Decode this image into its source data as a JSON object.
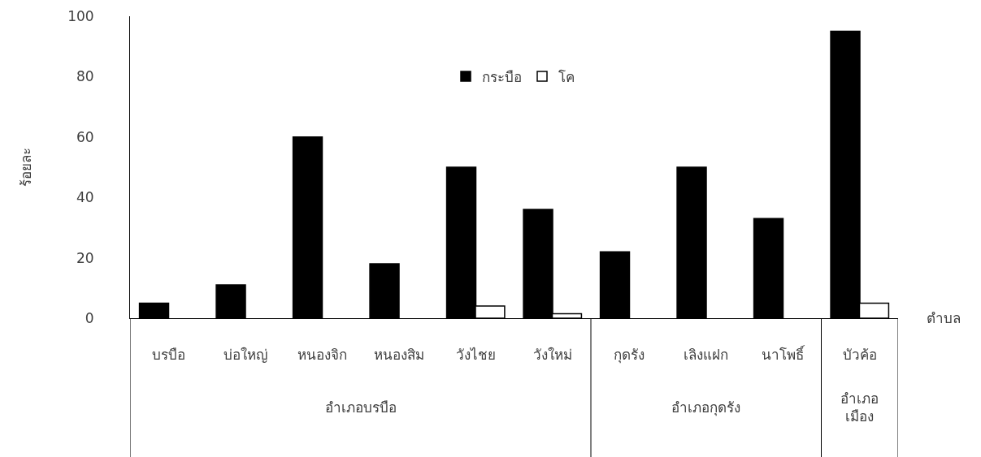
{
  "chart_data": {
    "type": "bar",
    "ylabel": "ร้อยละ",
    "xlabel": "ตำบล",
    "categories": [
      "บรบือ",
      "บ่อใหญ่",
      "หนองจิก",
      "หนองสิม",
      "วังไชย",
      "วังใหม่",
      "กุดรัง",
      "เลิงแฝก",
      "นาโพธิ์",
      "บัวค้อ"
    ],
    "series": [
      {
        "name": "กระบือ",
        "color": "#000000",
        "values": [
          5,
          11,
          60,
          18,
          50,
          36,
          22,
          50,
          33,
          95
        ]
      },
      {
        "name": "โค",
        "color": "#ffffff",
        "values": [
          null,
          null,
          null,
          null,
          4,
          1.5,
          null,
          null,
          null,
          5
        ]
      }
    ],
    "ylim": [
      0,
      100
    ],
    "yticks": [
      0,
      20,
      40,
      60,
      80,
      100
    ],
    "grid": false,
    "legend": "top",
    "annotations": [
      "อำเภอบรบือ",
      "อำเภอกุดรัง",
      "อำเภอ\nเมือง"
    ]
  }
}
